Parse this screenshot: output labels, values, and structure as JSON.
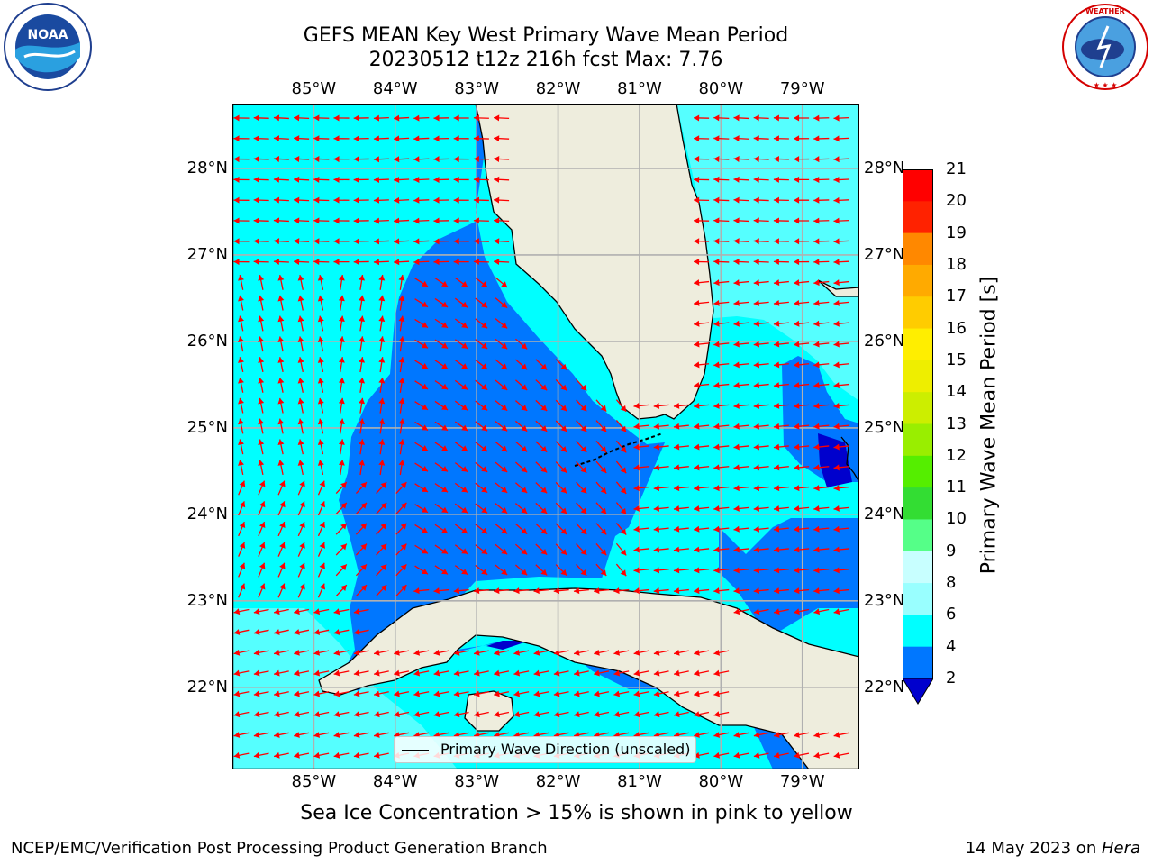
{
  "title": {
    "line1": "GEFS MEAN Key West Primary Wave Mean Period",
    "line2": "20230512 t12z 216h fcst   Max: 7.76"
  },
  "logos": {
    "left": {
      "icon": "noaa-logo",
      "text": "NOAA"
    },
    "right": {
      "icon": "nws-logo",
      "text": "NATIONAL WEATHER SERVICE"
    }
  },
  "axes": {
    "lon_labels": [
      "85°W",
      "84°W",
      "83°W",
      "82°W",
      "81°W",
      "80°W",
      "79°W"
    ],
    "lat_labels": [
      "28°N",
      "27°N",
      "26°N",
      "25°N",
      "24°N",
      "23°N",
      "22°N"
    ],
    "lon_range": [
      -86.0,
      -78.3
    ],
    "lat_range": [
      21.05,
      28.75
    ]
  },
  "colorbar": {
    "label": "Primary Wave Mean Period [s]",
    "ticks": [
      "21",
      "20",
      "19",
      "18",
      "17",
      "16",
      "15",
      "14",
      "13",
      "12",
      "11",
      "10",
      "9",
      "8",
      "6",
      "4",
      "2"
    ],
    "extend": "min",
    "colors": [
      "#0000cd",
      "#0077ff",
      "#00ffff",
      "#55ffff",
      "#99ffff",
      "#c8ffff",
      "#55ff88",
      "#33dd33",
      "#00dd00",
      "#55ee00",
      "#99ee00",
      "#ccee00",
      "#eeee00",
      "#ffff00",
      "#ffee00",
      "#ffcc00",
      "#ffaa00",
      "#ff8800",
      "#ff5500",
      "#ff2200",
      "#ff0000"
    ]
  },
  "colors": {
    "land": "#eeeddd",
    "ocean_short": "#00ffff",
    "ocean_mid": "#0077ff",
    "ocean_deep": "#0000cd",
    "ocean_light": "#55ffff",
    "arrow": "#ff0000",
    "grid": "#b0b0b0"
  },
  "legend": {
    "label": "Primary Wave Direction (unscaled)"
  },
  "ice_note": "Sea Ice Concentration > 15% is shown in pink to yellow",
  "footer": {
    "left": "NCEP/EMC/Verification Post Processing Product Generation Branch",
    "right_prefix": "14 May 2023 on ",
    "right_host": "Hera"
  }
}
